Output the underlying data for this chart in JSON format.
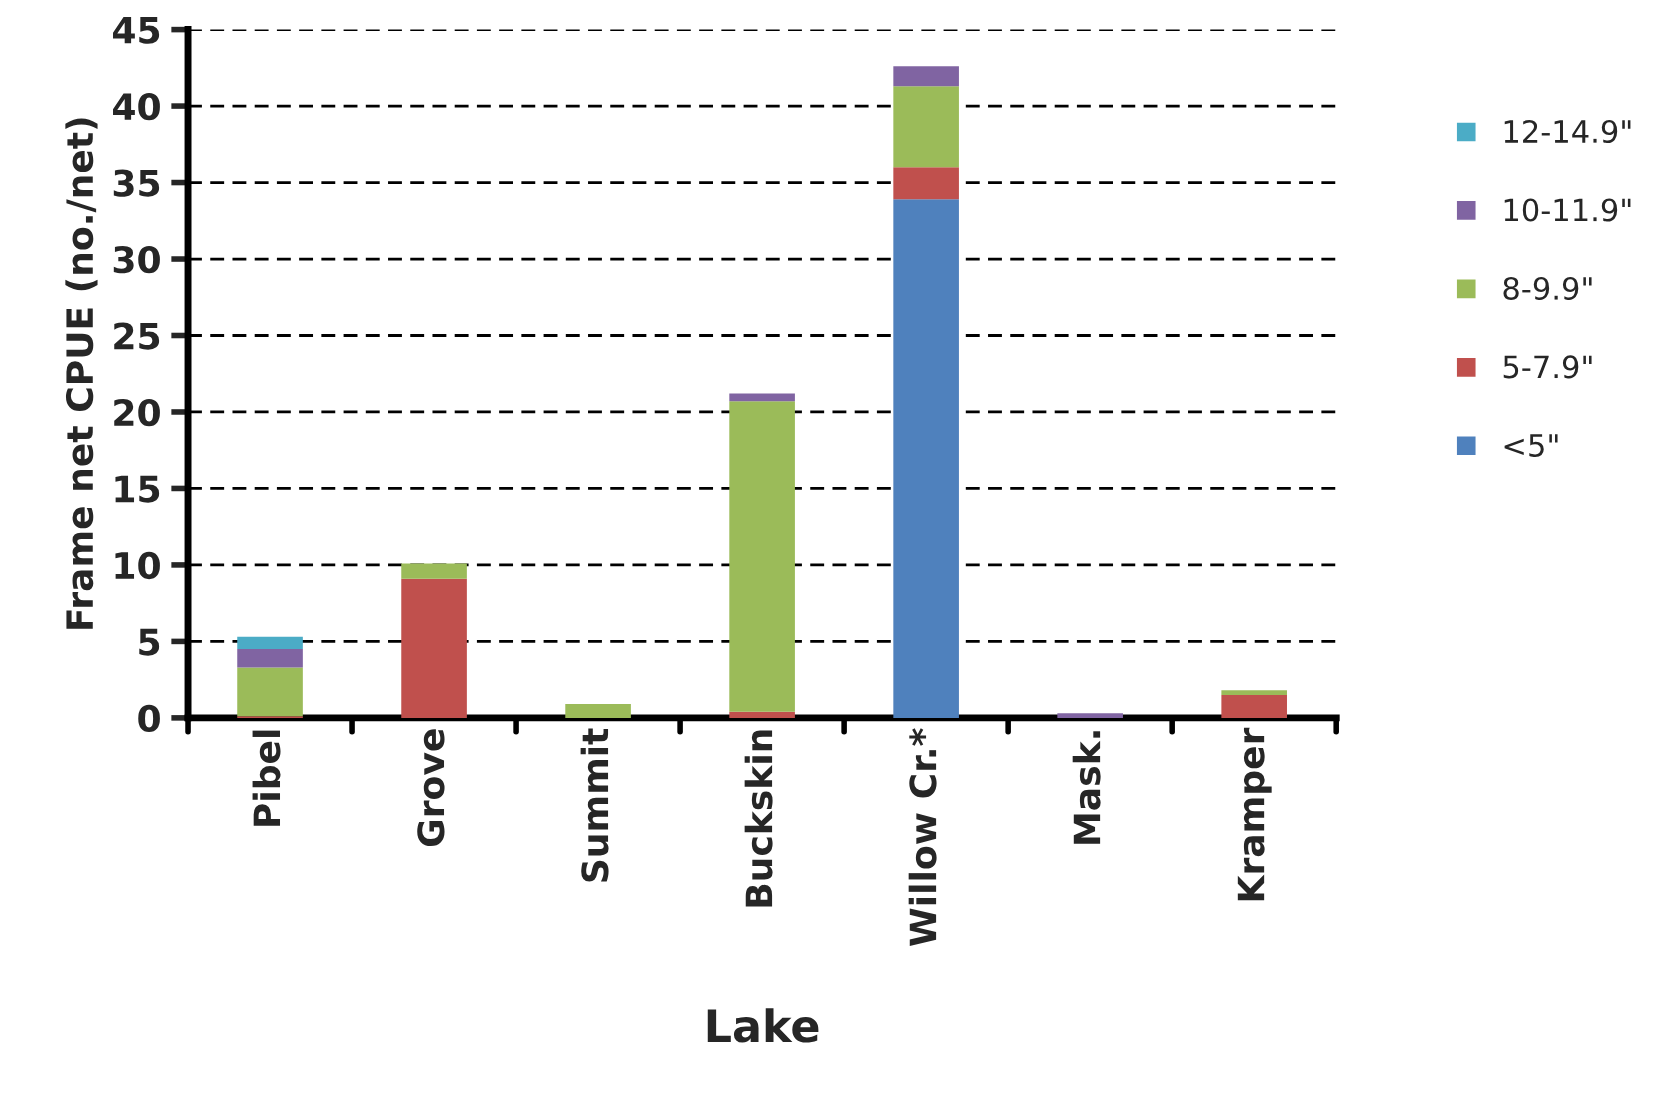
{
  "chart_data": {
    "type": "bar",
    "stacked": true,
    "xlabel": "Lake",
    "ylabel": "Frame net CPUE (no./net)",
    "categories": [
      "Pibel",
      "Grove",
      "Summit",
      "Buckskin",
      "Willow Cr.*",
      "Mask.",
      "Kramper"
    ],
    "series": [
      {
        "name": "<5\"",
        "color": "#4f81bd",
        "values": [
          0,
          0,
          0,
          0,
          33.9,
          0,
          0
        ]
      },
      {
        "name": "5-7.9\"",
        "color": "#c0504d",
        "values": [
          0.1,
          9.1,
          0,
          0.4,
          2.1,
          0,
          1.5
        ]
      },
      {
        "name": "8-9.9\"",
        "color": "#9bbb59",
        "values": [
          3.2,
          1.0,
          0.9,
          20.3,
          5.3,
          0,
          0.3
        ]
      },
      {
        "name": "10-11.9\"",
        "color": "#8064a2",
        "values": [
          1.2,
          0,
          0,
          0.5,
          1.3,
          0.3,
          0
        ]
      },
      {
        "name": "12-14.9\"",
        "color": "#4bacc6",
        "values": [
          0.8,
          0,
          0,
          0,
          0,
          0,
          0
        ]
      }
    ],
    "ylim": [
      0,
      45
    ],
    "yticks": [
      0,
      5,
      10,
      15,
      20,
      25,
      30,
      35,
      40,
      45
    ],
    "grid": "y",
    "legend": "right"
  }
}
